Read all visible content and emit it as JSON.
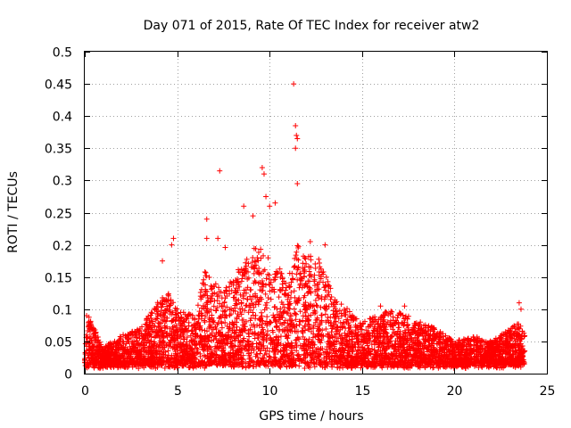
{
  "chart_data": {
    "type": "scatter",
    "title": "Day 071 of 2015, Rate Of TEC Index for receiver atw2",
    "xlabel": "GPS time / hours",
    "ylabel": "ROTI / TECUs",
    "xlim": [
      0,
      25
    ],
    "ylim": [
      0,
      0.5
    ],
    "x_ticks": [
      "0",
      "5",
      "10",
      "15",
      "20",
      "25"
    ],
    "y_ticks": [
      "0",
      "0.05",
      "0.1",
      "0.15",
      "0.2",
      "0.25",
      "0.3",
      "0.35",
      "0.4",
      "0.45",
      "0.5"
    ],
    "grid": true,
    "marker": "+",
    "color": "#ff0000",
    "series": [
      {
        "name": "ROTI",
        "envelope": [
          {
            "x": 0.0,
            "upper": 0.04
          },
          {
            "x": 0.2,
            "upper": 0.09
          },
          {
            "x": 1.0,
            "upper": 0.04
          },
          {
            "x": 2.0,
            "upper": 0.06
          },
          {
            "x": 3.0,
            "upper": 0.07
          },
          {
            "x": 4.0,
            "upper": 0.12
          },
          {
            "x": 4.5,
            "upper": 0.13
          },
          {
            "x": 5.0,
            "upper": 0.1
          },
          {
            "x": 6.0,
            "upper": 0.09
          },
          {
            "x": 6.5,
            "upper": 0.16
          },
          {
            "x": 7.5,
            "upper": 0.13
          },
          {
            "x": 8.5,
            "upper": 0.17
          },
          {
            "x": 9.3,
            "upper": 0.2
          },
          {
            "x": 10.0,
            "upper": 0.18
          },
          {
            "x": 11.0,
            "upper": 0.15
          },
          {
            "x": 11.5,
            "upper": 0.2
          },
          {
            "x": 12.5,
            "upper": 0.19
          },
          {
            "x": 13.5,
            "upper": 0.12
          },
          {
            "x": 15.0,
            "upper": 0.08
          },
          {
            "x": 16.5,
            "upper": 0.1
          },
          {
            "x": 17.5,
            "upper": 0.09
          },
          {
            "x": 19.0,
            "upper": 0.07
          },
          {
            "x": 20.0,
            "upper": 0.05
          },
          {
            "x": 21.0,
            "upper": 0.06
          },
          {
            "x": 22.0,
            "upper": 0.05
          },
          {
            "x": 23.5,
            "upper": 0.08
          },
          {
            "x": 23.8,
            "upper": 0.06
          }
        ],
        "outliers": [
          {
            "x": 0.1,
            "y": 0.09
          },
          {
            "x": 4.2,
            "y": 0.175
          },
          {
            "x": 4.7,
            "y": 0.2
          },
          {
            "x": 4.8,
            "y": 0.21
          },
          {
            "x": 6.6,
            "y": 0.24
          },
          {
            "x": 6.6,
            "y": 0.21
          },
          {
            "x": 7.2,
            "y": 0.21
          },
          {
            "x": 7.3,
            "y": 0.315
          },
          {
            "x": 7.6,
            "y": 0.196
          },
          {
            "x": 8.6,
            "y": 0.26
          },
          {
            "x": 9.1,
            "y": 0.245
          },
          {
            "x": 9.6,
            "y": 0.32
          },
          {
            "x": 9.7,
            "y": 0.31
          },
          {
            "x": 9.8,
            "y": 0.275
          },
          {
            "x": 10.0,
            "y": 0.26
          },
          {
            "x": 10.3,
            "y": 0.265
          },
          {
            "x": 11.3,
            "y": 0.45
          },
          {
            "x": 11.4,
            "y": 0.385
          },
          {
            "x": 11.45,
            "y": 0.37
          },
          {
            "x": 11.5,
            "y": 0.365
          },
          {
            "x": 11.4,
            "y": 0.35
          },
          {
            "x": 11.5,
            "y": 0.295
          },
          {
            "x": 13.0,
            "y": 0.2
          },
          {
            "x": 12.2,
            "y": 0.205
          },
          {
            "x": 23.5,
            "y": 0.11
          },
          {
            "x": 23.6,
            "y": 0.1
          },
          {
            "x": 17.3,
            "y": 0.105
          },
          {
            "x": 16.0,
            "y": 0.105
          }
        ]
      }
    ]
  }
}
